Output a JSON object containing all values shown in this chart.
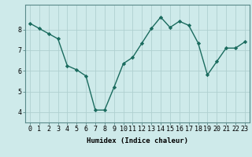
{
  "x": [
    0,
    1,
    2,
    3,
    4,
    5,
    6,
    7,
    8,
    9,
    10,
    11,
    12,
    13,
    14,
    15,
    16,
    17,
    18,
    19,
    20,
    21,
    22,
    23
  ],
  "y": [
    8.3,
    8.05,
    7.8,
    7.55,
    6.25,
    6.05,
    5.75,
    4.1,
    4.1,
    5.2,
    6.35,
    6.65,
    7.35,
    8.05,
    8.6,
    8.1,
    8.4,
    8.2,
    7.35,
    5.8,
    6.45,
    7.1,
    7.1,
    7.4
  ],
  "line_color": "#1a6b5e",
  "marker": "D",
  "markersize": 2.2,
  "linewidth": 1.0,
  "bg_color": "#ceeaea",
  "grid_color": "#b0d0d0",
  "xlabel": "Humidex (Indice chaleur)",
  "xlim": [
    -0.5,
    23.5
  ],
  "ylim": [
    3.5,
    9.2
  ],
  "xticks": [
    0,
    1,
    2,
    3,
    4,
    5,
    6,
    7,
    8,
    9,
    10,
    11,
    12,
    13,
    14,
    15,
    16,
    17,
    18,
    19,
    20,
    21,
    22,
    23
  ],
  "yticks": [
    4,
    5,
    6,
    7,
    8
  ],
  "xlabel_fontsize": 6.5,
  "tick_fontsize": 6.0
}
